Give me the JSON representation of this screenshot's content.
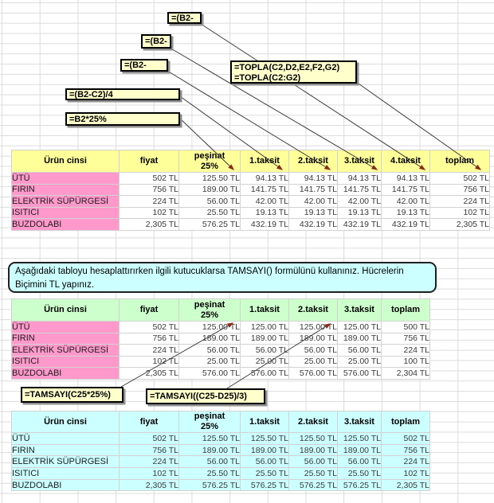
{
  "callouts": [
    {
      "text": "=(B2-"
    },
    {
      "text": "=(B2-"
    },
    {
      "text": "=(B2-"
    },
    {
      "lines": [
        "=TOPLA(C2,D2,E2,F2,G2)",
        "=TOPLA(C2:G2)"
      ]
    },
    {
      "text": "=(B2-C2)/4"
    },
    {
      "text": "=B2*25%"
    },
    {
      "text": "=TAMSAYI(C25*25%)"
    },
    {
      "text": "=TAMSAYI((C25-D25)/3)"
    }
  ],
  "note": {
    "text": "Aşağıdaki tabloyu hesaplattırırken ilgili kutucuklarsa TAMSAYI() formülünü kullanınız. Hücrelerin\nBiçimini TL yapınız."
  },
  "tables": [
    {
      "name": "installments-4-taksit",
      "headers": [
        "Ürün cinsi",
        "fiyat",
        "peşinat\n25%",
        "1.taksit",
        "2.taksit",
        "3.taksit",
        "4.taksit",
        "toplam"
      ],
      "rows": [
        [
          "ÜTÜ",
          "502 TL",
          "125.50 TL",
          "94.13 TL",
          "94.13 TL",
          "94.13 TL",
          "94.13 TL",
          "502 TL"
        ],
        [
          "FIRIN",
          "756 TL",
          "189.00 TL",
          "141.75 TL",
          "141.75 TL",
          "141.75 TL",
          "141.75 TL",
          "756 TL"
        ],
        [
          "ELEKTRİK SÜPÜRGESİ",
          "224 TL",
          "56.00 TL",
          "42.00 TL",
          "42.00 TL",
          "42.00 TL",
          "42.00 TL",
          "224 TL"
        ],
        [
          "ISITICI",
          "102 TL",
          "25.50 TL",
          "19.13 TL",
          "19.13 TL",
          "19.13 TL",
          "19.13 TL",
          "102 TL"
        ],
        [
          "BUZDOLABI",
          "2,305 TL",
          "576.25 TL",
          "432.19 TL",
          "432.19 TL",
          "432.19 TL",
          "432.19 TL",
          "2,305 TL"
        ]
      ]
    },
    {
      "name": "installments-tamsayi",
      "headers": [
        "Ürün cinsi",
        "fiyat",
        "peşinat\n25%",
        "1.taksit",
        "2.taksit",
        "3.taksit",
        "toplam"
      ],
      "rows": [
        [
          "ÜTÜ",
          "502 TL",
          "125.00 TL",
          "125.00 TL",
          "125.00 TL",
          "125.00 TL",
          "500 TL"
        ],
        [
          "FIRIN",
          "756 TL",
          "189.00 TL",
          "189.00 TL",
          "189.00 TL",
          "189.00 TL",
          "756 TL"
        ],
        [
          "ELEKTRİK SÜPÜRGESİ",
          "224 TL",
          "56.00 TL",
          "56.00 TL",
          "56.00 TL",
          "56.00 TL",
          "224 TL"
        ],
        [
          "ISITICI",
          "102 TL",
          "25.00 TL",
          "25.00 TL",
          "25.00 TL",
          "25.00 TL",
          "100 TL"
        ],
        [
          "BUZDOLABI",
          "2,305 TL",
          "576.00 TL",
          "576.00 TL",
          "576.00 TL",
          "576.00 TL",
          "2,304 TL"
        ]
      ]
    },
    {
      "name": "installments-tl-format",
      "headers": [
        "Ürün cinsi",
        "fiyat",
        "peşinat\n25%",
        "1.taksit",
        "2.taksit",
        "3.taksit",
        "toplam"
      ],
      "rows": [
        [
          "ÜTÜ",
          "502 TL",
          "125.50 TL",
          "125.50 TL",
          "125.50 TL",
          "125.50 TL",
          "502 TL"
        ],
        [
          "FIRIN",
          "756 TL",
          "189.00 TL",
          "189.00 TL",
          "189.00 TL",
          "189.00 TL",
          "756 TL"
        ],
        [
          "ELEKTRİK SÜPÜRGESİ",
          "224 TL",
          "56.00 TL",
          "56.00 TL",
          "56.00 TL",
          "56.00 TL",
          "224 TL"
        ],
        [
          "ISITICI",
          "102 TL",
          "25.50 TL",
          "25.50 TL",
          "25.50 TL",
          "25.50 TL",
          "102 TL"
        ],
        [
          "BUZDOLABI",
          "2,305 TL",
          "576.25 TL",
          "576.25 TL",
          "576.25 TL",
          "576.25 TL",
          "2,305 TL"
        ]
      ]
    }
  ],
  "colors": {
    "table1_header": "#ffff99",
    "product_column": "#ff99cc",
    "table2_header": "#ccffcc",
    "table3_fill": "#ccffff",
    "note_fill": "#ccffff",
    "callout_fill": "#ffffcc",
    "line": "#3c3c3c",
    "arrowhead": "#8b2a15",
    "grid_line": "#dcdcdc"
  }
}
